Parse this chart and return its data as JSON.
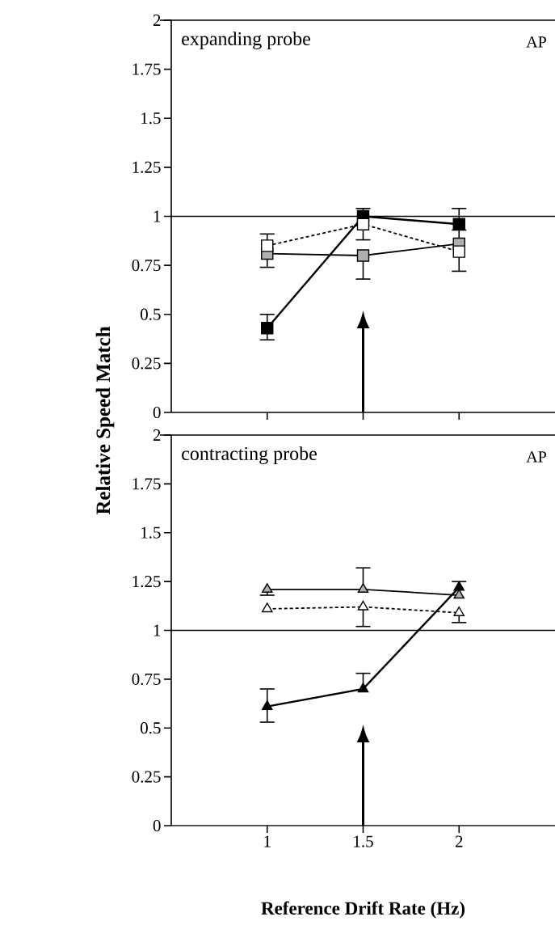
{
  "chart_data": [
    {
      "type": "line",
      "ylabel": "Relative Speed Match",
      "annotations": [
        "expanding probe",
        "AP"
      ],
      "x": [
        1,
        1.5,
        2
      ],
      "xlim": [
        0.5,
        2.5
      ],
      "ylim": [
        0,
        2
      ],
      "xticks": [
        1,
        1.5,
        2
      ],
      "yticks": [
        0,
        0.25,
        0.5,
        0.75,
        1,
        1.25,
        1.5,
        1.75,
        2
      ],
      "tick_labels": "y",
      "ref_lines": [
        {
          "axis": "y",
          "value": 1
        }
      ],
      "series": [
        {
          "color": "#000000",
          "marker": "square",
          "line_style": "solid",
          "values": [
            0.43,
            1.0,
            0.96
          ],
          "errors": [
            [
              0.37,
              0.5
            ],
            [
              1.0,
              1.04
            ],
            [
              0.96,
              1.04
            ]
          ]
        },
        {
          "color": "#b0b0b0",
          "marker": "square",
          "line_style": "solid",
          "values": [
            0.81,
            0.8,
            0.86
          ],
          "errors": [
            [
              0.74,
              0.81
            ],
            [
              0.68,
              0.8
            ],
            [
              0.86,
              0.93
            ]
          ]
        },
        {
          "color": "#ffffff",
          "marker": "square",
          "line_style": "dashed",
          "values": [
            0.85,
            0.96,
            0.82
          ],
          "errors": [
            [
              0.85,
              0.91
            ],
            [
              0.88,
              0.96
            ],
            [
              0.72,
              0.82
            ]
          ]
        }
      ]
    },
    {
      "type": "line",
      "xlabel": "Reference Drift Rate (Hz)",
      "annotations": [
        "contracting probe",
        "AP"
      ],
      "x": [
        1,
        1.5,
        2
      ],
      "xlim": [
        0.5,
        2.5
      ],
      "ylim": [
        0,
        2
      ],
      "xticks": [
        1,
        1.5,
        2
      ],
      "yticks": [
        0,
        0.25,
        0.5,
        0.75,
        1,
        1.25,
        1.5,
        1.75,
        2
      ],
      "ref_lines": [
        {
          "axis": "y",
          "value": 1
        }
      ],
      "series": [
        {
          "color": "#000000",
          "marker": "triangle",
          "line_style": "solid",
          "values": [
            0.61,
            0.7,
            1.22
          ],
          "errors": [
            [
              0.53,
              0.7
            ],
            [
              0.7,
              0.78
            ],
            [
              1.22,
              1.25
            ]
          ]
        },
        {
          "color": "#ffffff",
          "marker": "triangle",
          "line_style": "dashed",
          "values": [
            1.11,
            1.12,
            1.09
          ],
          "errors": [
            null,
            [
              1.02,
              1.12
            ],
            [
              1.04,
              1.09
            ]
          ]
        },
        {
          "color": "#b0b0b0",
          "marker": "triangle",
          "line_style": "solid",
          "values": [
            1.21,
            1.21,
            1.18
          ],
          "errors": [
            [
              1.18,
              1.21
            ],
            [
              1.21,
              1.32
            ],
            null
          ]
        }
      ]
    }
  ]
}
